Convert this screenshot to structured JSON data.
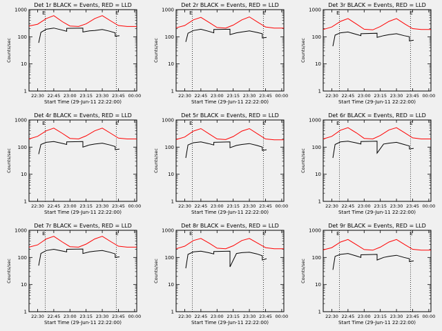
{
  "colors": {
    "background": "#f0f0f0",
    "events": "#000000",
    "lld": "#ff0000",
    "axes": "#000000"
  },
  "shared_axes": {
    "ylabel": "Counts/sec",
    "xlabel": "Start Time (29-Jun-11 22:22:00)",
    "xticks": [
      "22:30",
      "22:45",
      "23:00",
      "23:15",
      "23:30",
      "23:45",
      "00:00"
    ],
    "yticks": [
      "1",
      "10",
      "100",
      "1000"
    ],
    "x_start": "22:22",
    "x_end": "00:02",
    "ylim": [
      1,
      1000
    ],
    "yscale": "log",
    "vlines": [
      "22:37",
      "23:43"
    ],
    "marker_label": "E"
  },
  "panels": [
    {
      "title": "Det 1r BLACK = Events, RED = LLD"
    },
    {
      "title": "Det 2r BLACK = Events, RED = LLD"
    },
    {
      "title": "Det 3r BLACK = Events, RED = LLD"
    },
    {
      "title": "Det 4r BLACK = Events, RED = LLD"
    },
    {
      "title": "Det 5r BLACK = Events, RED = LLD"
    },
    {
      "title": "Det 6r BLACK = Events, RED = LLD"
    },
    {
      "title": "Det 7r BLACK = Events, RED = LLD"
    },
    {
      "title": "Det 8r BLACK = Events, RED = LLD"
    },
    {
      "title": "Det 9r BLACK = Events, RED = LLD"
    }
  ],
  "chart_data": [
    {
      "type": "line",
      "title": "Det 1r BLACK = Events, RED = LLD",
      "xlabel": "Start Time (29-Jun-11 22:22:00)",
      "ylabel": "Counts/sec",
      "ylim": [
        1,
        1000
      ],
      "yscale": "log",
      "series": [
        {
          "name": "LLD",
          "color": "#ff0000",
          "x": [
            "22:22",
            "22:30",
            "22:38",
            "22:45",
            "22:53",
            "23:00",
            "23:08",
            "23:15",
            "23:23",
            "23:30",
            "23:38",
            "23:45",
            "23:53",
            "00:02"
          ],
          "y": [
            250,
            290,
            470,
            600,
            360,
            250,
            240,
            300,
            470,
            600,
            380,
            260,
            240,
            240
          ]
        },
        {
          "name": "Events",
          "color": "#000000",
          "x": [
            "22:31",
            "22:33",
            "22:38",
            "22:45",
            "22:52",
            "22:57",
            "22:57",
            "23:12",
            "23:12",
            "23:18",
            "23:23",
            "23:30",
            "23:37",
            "23:42",
            "23:42",
            "23:46"
          ],
          "y": [
            60,
            145,
            190,
            210,
            180,
            160,
            205,
            210,
            150,
            165,
            170,
            185,
            160,
            140,
            105,
            110
          ]
        }
      ]
    },
    {
      "type": "line",
      "title": "Det 2r BLACK = Events, RED = LLD",
      "xlabel": "Start Time (29-Jun-11 22:22:00)",
      "ylabel": "Counts/sec",
      "ylim": [
        1,
        1000
      ],
      "yscale": "log",
      "series": [
        {
          "name": "LLD",
          "color": "#ff0000",
          "x": [
            "22:22",
            "22:30",
            "22:38",
            "22:45",
            "22:53",
            "23:00",
            "23:08",
            "23:15",
            "23:23",
            "23:30",
            "23:38",
            "23:45",
            "23:53",
            "00:02"
          ],
          "y": [
            215,
            260,
            420,
            520,
            330,
            220,
            210,
            270,
            420,
            540,
            340,
            230,
            210,
            210
          ]
        },
        {
          "name": "Events",
          "color": "#000000",
          "x": [
            "22:31",
            "22:33",
            "22:38",
            "22:45",
            "22:52",
            "22:57",
            "22:57",
            "23:12",
            "23:12",
            "23:18",
            "23:23",
            "23:30",
            "23:37",
            "23:42",
            "23:42",
            "23:46"
          ],
          "y": [
            65,
            135,
            170,
            190,
            160,
            140,
            185,
            190,
            120,
            140,
            150,
            165,
            145,
            130,
            90,
            95
          ]
        }
      ]
    },
    {
      "type": "line",
      "title": "Det 3r BLACK = Events, RED = LLD",
      "xlabel": "Start Time (29-Jun-11 22:22:00)",
      "ylabel": "Counts/sec",
      "ylim": [
        1,
        1000
      ],
      "yscale": "log",
      "series": [
        {
          "name": "LLD",
          "color": "#ff0000",
          "x": [
            "22:22",
            "22:30",
            "22:38",
            "22:45",
            "22:53",
            "23:00",
            "23:08",
            "23:15",
            "23:23",
            "23:30",
            "23:38",
            "23:45",
            "23:53",
            "00:02"
          ],
          "y": [
            185,
            230,
            370,
            470,
            290,
            190,
            180,
            240,
            370,
            470,
            290,
            200,
            185,
            185
          ]
        },
        {
          "name": "Events",
          "color": "#000000",
          "x": [
            "22:31",
            "22:33",
            "22:38",
            "22:45",
            "22:52",
            "22:57",
            "22:57",
            "23:12",
            "23:12",
            "23:18",
            "23:23",
            "23:30",
            "23:37",
            "23:42",
            "23:42",
            "23:46"
          ],
          "y": [
            45,
            115,
            140,
            150,
            125,
            110,
            130,
            135,
            95,
            110,
            120,
            130,
            110,
            100,
            70,
            75
          ]
        }
      ]
    },
    {
      "type": "line",
      "title": "Det 4r BLACK = Events, RED = LLD",
      "xlabel": "Start Time (29-Jun-11 22:22:00)",
      "ylabel": "Counts/sec",
      "ylim": [
        1,
        1000
      ],
      "yscale": "log",
      "series": [
        {
          "name": "LLD",
          "color": "#ff0000",
          "x": [
            "22:22",
            "22:30",
            "22:38",
            "22:45",
            "22:53",
            "23:00",
            "23:08",
            "23:15",
            "23:23",
            "23:30",
            "23:38",
            "23:45",
            "23:53",
            "00:02"
          ],
          "y": [
            200,
            250,
            400,
            500,
            320,
            210,
            200,
            260,
            400,
            500,
            320,
            215,
            200,
            200
          ]
        },
        {
          "name": "Events",
          "color": "#000000",
          "x": [
            "22:31",
            "22:33",
            "22:38",
            "22:45",
            "22:52",
            "22:57",
            "22:57",
            "23:12",
            "23:12",
            "23:18",
            "23:23",
            "23:30",
            "23:37",
            "23:42",
            "23:42",
            "23:46"
          ],
          "y": [
            55,
            125,
            150,
            160,
            140,
            125,
            155,
            160,
            100,
            120,
            130,
            140,
            120,
            105,
            80,
            85
          ]
        }
      ]
    },
    {
      "type": "line",
      "title": "Det 5r BLACK = Events, RED = LLD",
      "xlabel": "Start Time (29-Jun-11 22:22:00)",
      "ylabel": "Counts/sec",
      "ylim": [
        1,
        1000
      ],
      "yscale": "log",
      "series": [
        {
          "name": "LLD",
          "color": "#ff0000",
          "x": [
            "22:22",
            "22:30",
            "22:38",
            "22:45",
            "22:53",
            "23:00",
            "23:08",
            "23:15",
            "23:23",
            "23:30",
            "23:38",
            "23:45",
            "23:53",
            "00:02"
          ],
          "y": [
            190,
            235,
            390,
            480,
            300,
            200,
            190,
            245,
            390,
            480,
            300,
            200,
            185,
            185
          ]
        },
        {
          "name": "Events",
          "color": "#000000",
          "x": [
            "22:31",
            "22:33",
            "22:38",
            "22:45",
            "22:52",
            "22:57",
            "22:57",
            "23:12",
            "23:12",
            "23:18",
            "23:23",
            "23:30",
            "23:37",
            "23:42",
            "23:42",
            "23:46"
          ],
          "y": [
            40,
            120,
            145,
            155,
            135,
            120,
            150,
            155,
            95,
            115,
            125,
            135,
            115,
            100,
            75,
            80
          ]
        }
      ]
    },
    {
      "type": "line",
      "title": "Det 6r BLACK = Events, RED = LLD",
      "xlabel": "Start Time (29-Jun-11 22:22:00)",
      "ylabel": "Counts/sec",
      "ylim": [
        1,
        1000
      ],
      "yscale": "log",
      "series": [
        {
          "name": "LLD",
          "color": "#ff0000",
          "x": [
            "22:22",
            "22:30",
            "22:38",
            "22:45",
            "22:53",
            "23:00",
            "23:08",
            "23:15",
            "23:23",
            "23:30",
            "23:38",
            "23:45",
            "23:53",
            "00:02"
          ],
          "y": [
            200,
            250,
            420,
            520,
            330,
            210,
            200,
            270,
            430,
            520,
            330,
            220,
            200,
            200
          ]
        },
        {
          "name": "Events",
          "color": "#000000",
          "x": [
            "22:31",
            "22:33",
            "22:38",
            "22:45",
            "22:52",
            "22:57",
            "22:57",
            "23:12",
            "23:12",
            "23:18",
            "23:23",
            "23:30",
            "23:37",
            "23:42",
            "23:42",
            "23:46"
          ],
          "y": [
            40,
            125,
            155,
            165,
            145,
            130,
            160,
            165,
            60,
            130,
            140,
            150,
            125,
            110,
            85,
            90
          ]
        }
      ]
    },
    {
      "type": "line",
      "title": "Det 7r BLACK = Events, RED = LLD",
      "xlabel": "Start Time (29-Jun-11 22:22:00)",
      "ylabel": "Counts/sec",
      "ylim": [
        1,
        1000
      ],
      "yscale": "log",
      "series": [
        {
          "name": "LLD",
          "color": "#ff0000",
          "x": [
            "22:22",
            "22:30",
            "22:38",
            "22:45",
            "22:53",
            "23:00",
            "23:08",
            "23:15",
            "23:23",
            "23:30",
            "23:38",
            "23:45",
            "23:53",
            "00:02"
          ],
          "y": [
            240,
            290,
            480,
            600,
            370,
            250,
            240,
            310,
            480,
            600,
            380,
            260,
            240,
            240
          ]
        },
        {
          "name": "Events",
          "color": "#000000",
          "x": [
            "22:31",
            "22:33",
            "22:38",
            "22:45",
            "22:52",
            "22:57",
            "22:57",
            "23:12",
            "23:12",
            "23:18",
            "23:23",
            "23:30",
            "23:37",
            "23:42",
            "23:42",
            "23:46"
          ],
          "y": [
            50,
            140,
            180,
            200,
            175,
            160,
            200,
            205,
            140,
            160,
            170,
            180,
            155,
            135,
            100,
            105
          ]
        }
      ]
    },
    {
      "type": "line",
      "title": "Det 8r BLACK = Events, RED = LLD",
      "xlabel": "Start Time (29-Jun-11 22:22:00)",
      "ylabel": "Counts/sec",
      "ylim": [
        1,
        1000
      ],
      "yscale": "log",
      "series": [
        {
          "name": "LLD",
          "color": "#ff0000",
          "x": [
            "22:22",
            "22:30",
            "22:38",
            "22:45",
            "22:53",
            "23:00",
            "23:08",
            "23:15",
            "23:23",
            "23:30",
            "23:38",
            "23:45",
            "23:53",
            "00:02"
          ],
          "y": [
            210,
            260,
            420,
            500,
            330,
            220,
            210,
            270,
            420,
            500,
            330,
            230,
            210,
            210
          ]
        },
        {
          "name": "Events",
          "color": "#000000",
          "x": [
            "22:31",
            "22:33",
            "22:38",
            "22:45",
            "22:52",
            "22:57",
            "22:57",
            "23:12",
            "23:12",
            "23:18",
            "23:23",
            "23:30",
            "23:37",
            "23:42",
            "23:42",
            "23:46"
          ],
          "y": [
            40,
            130,
            160,
            170,
            150,
            135,
            165,
            170,
            45,
            140,
            150,
            155,
            135,
            115,
            80,
            90
          ]
        }
      ]
    },
    {
      "type": "line",
      "title": "Det 9r BLACK = Events, RED = LLD",
      "xlabel": "Start Time (29-Jun-11 22:22:00)",
      "ylabel": "Counts/sec",
      "ylim": [
        1,
        1000
      ],
      "yscale": "log",
      "series": [
        {
          "name": "LLD",
          "color": "#ff0000",
          "x": [
            "22:22",
            "22:30",
            "22:38",
            "22:45",
            "22:53",
            "23:00",
            "23:08",
            "23:15",
            "23:23",
            "23:30",
            "23:38",
            "23:45",
            "23:53",
            "00:02"
          ],
          "y": [
            190,
            230,
            370,
            460,
            290,
            195,
            185,
            240,
            370,
            460,
            290,
            200,
            185,
            185
          ]
        },
        {
          "name": "Events",
          "color": "#000000",
          "x": [
            "22:31",
            "22:33",
            "22:38",
            "22:45",
            "22:52",
            "22:57",
            "22:57",
            "23:12",
            "23:12",
            "23:18",
            "23:23",
            "23:30",
            "23:37",
            "23:42",
            "23:42",
            "23:46"
          ],
          "y": [
            35,
            110,
            130,
            140,
            115,
            100,
            125,
            130,
            80,
            100,
            110,
            120,
            100,
            90,
            70,
            75
          ]
        }
      ]
    }
  ]
}
